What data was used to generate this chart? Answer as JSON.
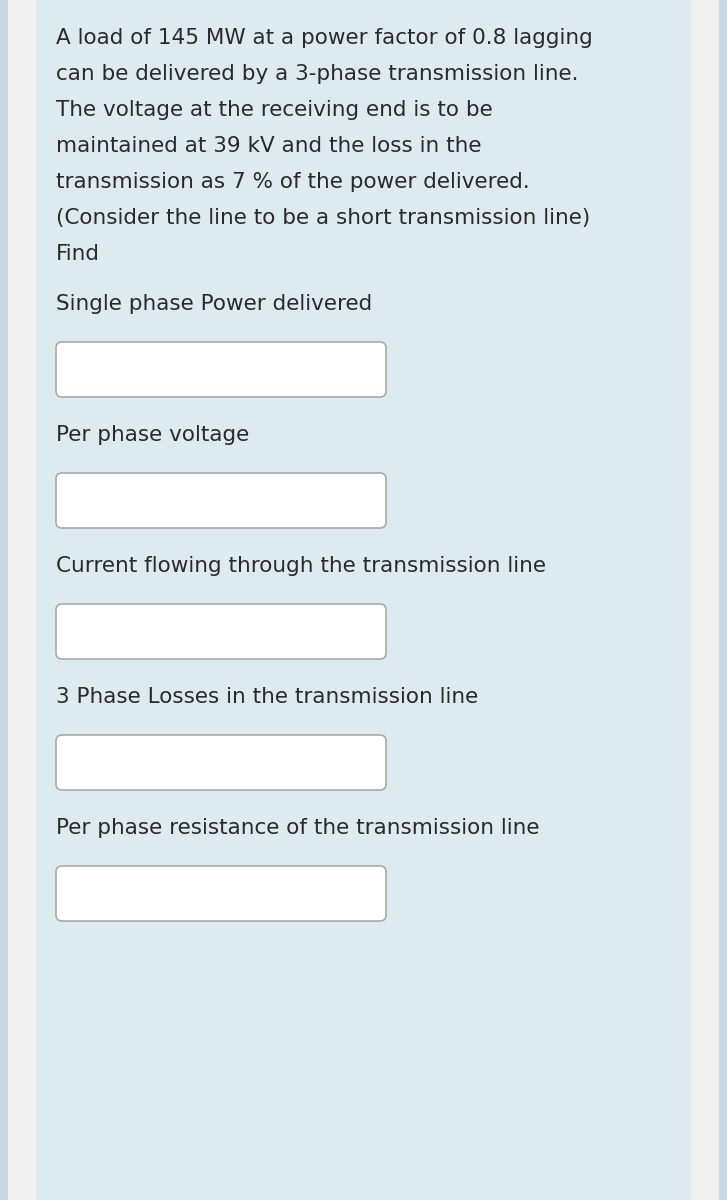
{
  "outer_bg_color": "#c8d8e0",
  "inner_bg_color": "#ddeaf0",
  "left_strip_color": "#f0f0ee",
  "text_color": "#2a2a2a",
  "box_fill_color": "#ffffff",
  "box_edge_color": "#aaaaaa",
  "problem_lines": [
    "A load of 145 MW at a power factor of 0.8 lagging",
    "can be delivered by a 3-phase transmission line.",
    "The voltage at the receiving end is to be",
    "maintained at 39 kV and the loss in the",
    "transmission as 7 % of the power delivered.",
    "(Consider the line to be a short transmission line)",
    "Find"
  ],
  "questions": [
    "Single phase Power delivered",
    "Per phase voltage",
    "Current flowing through the transmission line",
    "3 Phase Losses in the transmission line",
    "Per phase resistance of the transmission line"
  ],
  "font_size": 15.5,
  "fig_width": 7.27,
  "fig_height": 12.0,
  "dpi": 100
}
